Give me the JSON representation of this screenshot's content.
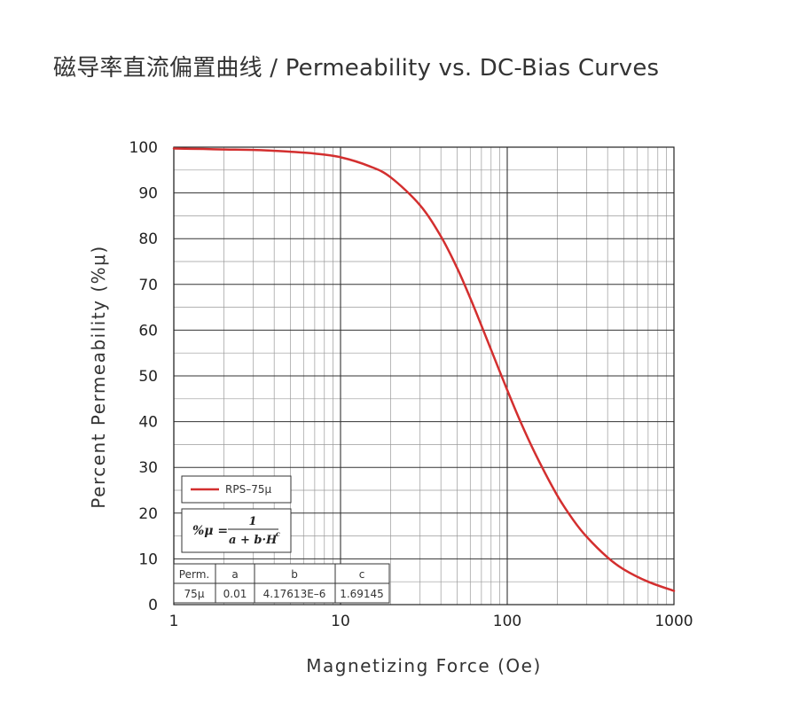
{
  "chart_data": {
    "type": "line",
    "title": "磁导率直流偏置曲线 / Permeability vs. DC-Bias Curves",
    "xlabel": "Magnetizing Force (Oe)",
    "ylabel": "Percent Permeability (%μ)",
    "x_scale": "log",
    "xlim": [
      1,
      1000
    ],
    "ylim": [
      0,
      100
    ],
    "x_ticks": [
      "1",
      "10",
      "100",
      "1000"
    ],
    "y_ticks": [
      "0",
      "10",
      "20",
      "30",
      "40",
      "50",
      "60",
      "70",
      "80",
      "90",
      "100"
    ],
    "grid": true,
    "legend_position": "bottom-left",
    "series": [
      {
        "name": "RPS–75μ",
        "color": "#d32f2f",
        "x": [
          1,
          1.5,
          2,
          3,
          4,
          5,
          7,
          10,
          15,
          20,
          30,
          40,
          50,
          60,
          70,
          80,
          100,
          120,
          150,
          200,
          250,
          300,
          400,
          500,
          700,
          1000
        ],
        "y": [
          99.7,
          99.6,
          99.5,
          99.4,
          99.2,
          99.0,
          98.6,
          97.8,
          95.8,
          93.4,
          87.3,
          80.5,
          73.6,
          67.0,
          61.0,
          55.7,
          46.9,
          40.0,
          32.4,
          23.8,
          18.4,
          14.8,
          10.3,
          7.7,
          5.0,
          3.0
        ]
      }
    ],
    "formula": {
      "lhs": "%μ =",
      "numerator": "1",
      "denominator": "a + b·H",
      "exponent": "c"
    },
    "param_table": {
      "headers": [
        "Perm.",
        "a",
        "b",
        "c"
      ],
      "rows": [
        [
          "75μ",
          "0.01",
          "4.17613E–6",
          "1.69145"
        ]
      ]
    }
  }
}
